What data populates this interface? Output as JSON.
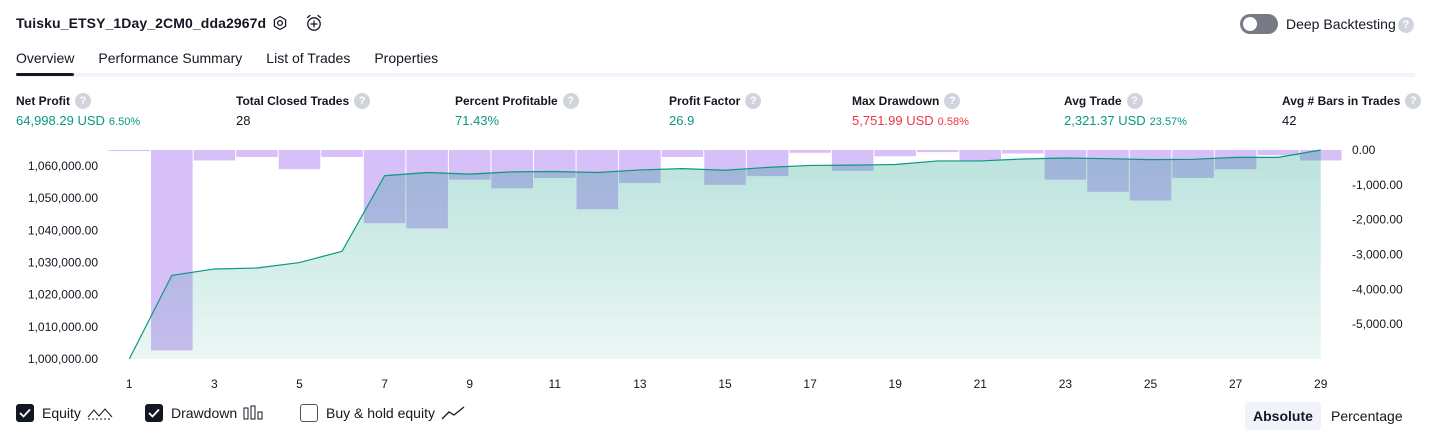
{
  "header": {
    "strategy_name": "Tuisku_ETSY_1Day_2CM0_dda2967d",
    "settings_icon": "gear-icon",
    "alert_icon": "alarm-clock-plus-icon",
    "deep_backtesting_label": "Deep Backtesting",
    "deep_backtesting_on": false,
    "help_glyph": "?"
  },
  "tabs": [
    {
      "label": "Overview",
      "active": true
    },
    {
      "label": "Performance Summary",
      "active": false
    },
    {
      "label": "List of Trades",
      "active": false
    },
    {
      "label": "Properties",
      "active": false
    }
  ],
  "metrics": [
    {
      "title": "Net Profit",
      "value": "64,998.29 USD",
      "pct": "6.50%",
      "color": "#089981"
    },
    {
      "title": "Total Closed Trades",
      "value": "28",
      "pct": "",
      "color": "#131722"
    },
    {
      "title": "Percent Profitable",
      "value": "71.43%",
      "pct": "",
      "color": "#089981"
    },
    {
      "title": "Profit Factor",
      "value": "26.9",
      "pct": "",
      "color": "#089981"
    },
    {
      "title": "Max Drawdown",
      "value": "5,751.99 USD",
      "pct": "0.58%",
      "color": "#f23645"
    },
    {
      "title": "Avg Trade",
      "value": "2,321.37 USD",
      "pct": "23.57%",
      "color": "#089981"
    },
    {
      "title": "Avg # Bars in Trades",
      "value": "42",
      "pct": "",
      "color": "#131722"
    }
  ],
  "chart_data": {
    "type": "area",
    "x_ticks": [
      "1",
      "3",
      "5",
      "7",
      "9",
      "11",
      "13",
      "15",
      "17",
      "19",
      "21",
      "23",
      "25",
      "27",
      "29"
    ],
    "left_axis_ticks": [
      "1,060,000.00",
      "1,050,000.00",
      "1,040,000.00",
      "1,030,000.00",
      "1,020,000.00",
      "1,010,000.00",
      "1,000,000.00"
    ],
    "right_axis_ticks": [
      "0.00",
      "-1,000.00",
      "-2,000.00",
      "-3,000.00",
      "-4,000.00",
      "-5,000.00"
    ],
    "ylim_left": [
      1000000,
      1064998
    ],
    "ylim_right": [
      -6000,
      0
    ],
    "series": [
      {
        "name": "Equity",
        "color": "#089981",
        "x": [
          1,
          2,
          3,
          4,
          5,
          6,
          7,
          8,
          9,
          10,
          11,
          12,
          13,
          14,
          15,
          16,
          17,
          18,
          19,
          20,
          21,
          22,
          23,
          24,
          25,
          26,
          27,
          28,
          29
        ],
        "values": [
          1000000,
          1026000,
          1028000,
          1028300,
          1030000,
          1033500,
          1057000,
          1058000,
          1057500,
          1058200,
          1058300,
          1058000,
          1058800,
          1059200,
          1058700,
          1059600,
          1060200,
          1060300,
          1060500,
          1061600,
          1061600,
          1062200,
          1062500,
          1062300,
          1062000,
          1062100,
          1062700,
          1062700,
          1064998
        ]
      },
      {
        "name": "Drawdown",
        "color": "#c9a9f5",
        "x": [
          1,
          2,
          3,
          4,
          5,
          6,
          7,
          8,
          9,
          10,
          11,
          12,
          13,
          14,
          15,
          16,
          17,
          18,
          19,
          20,
          21,
          22,
          23,
          24,
          25,
          26,
          27,
          28,
          29
        ],
        "values": [
          -30,
          -5752,
          -300,
          -200,
          -550,
          -200,
          -2100,
          -2250,
          -850,
          -1100,
          -800,
          -1700,
          -950,
          -200,
          -1000,
          -750,
          -80,
          -600,
          -180,
          -60,
          -300,
          -100,
          -850,
          -1200,
          -1450,
          -800,
          -550,
          -150,
          -300
        ]
      }
    ]
  },
  "legend": {
    "equity_label": "Equity",
    "drawdown_label": "Drawdown",
    "buy_hold_label": "Buy & hold equity",
    "equity_checked": true,
    "drawdown_checked": true,
    "buy_hold_checked": false,
    "absolute_label": "Absolute",
    "percentage_label": "Percentage",
    "active_mode": "Absolute"
  }
}
